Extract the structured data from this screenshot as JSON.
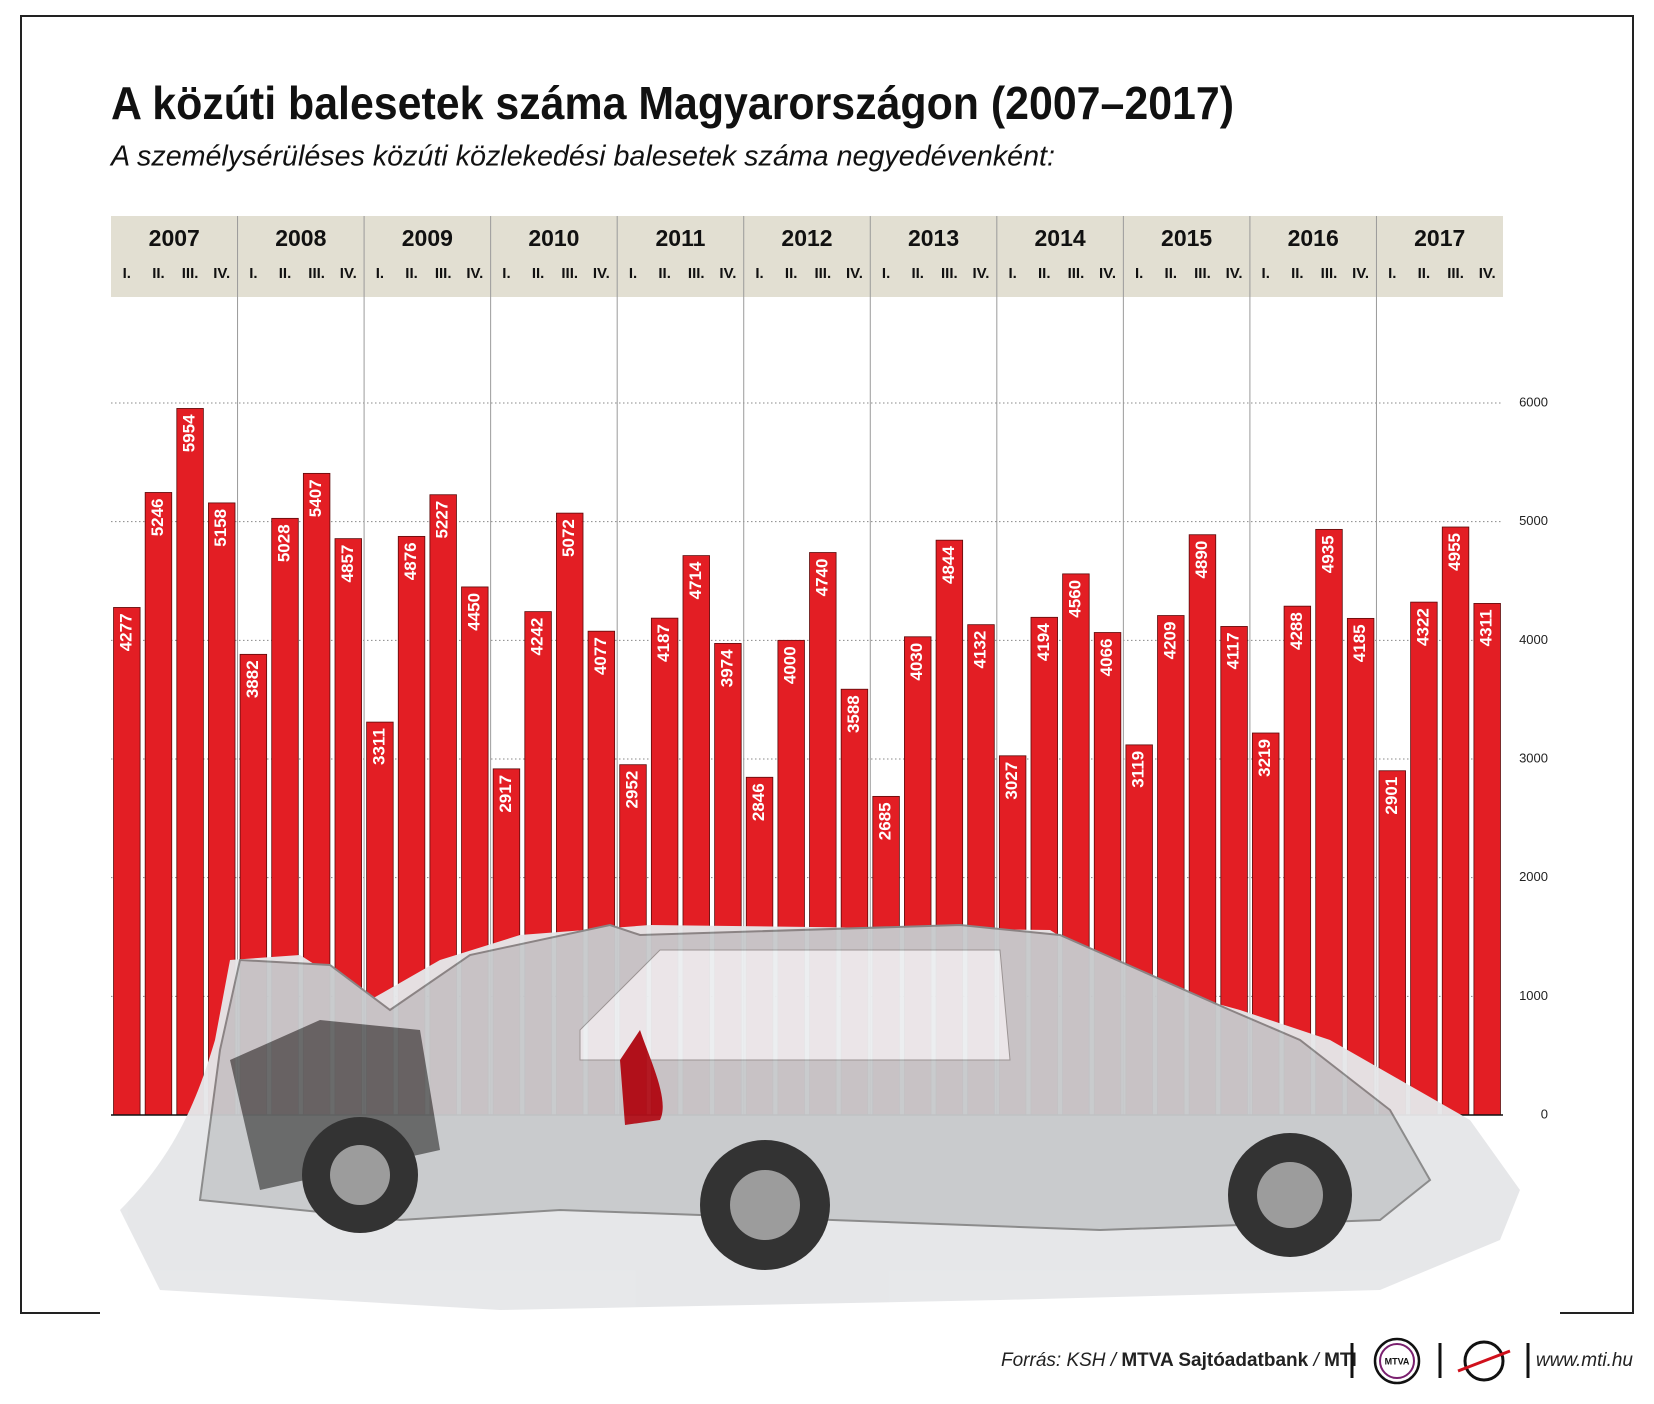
{
  "chart_data": {
    "type": "bar",
    "title": "A közúti balesetek száma Magyarországon (2007–2017)",
    "subtitle": "A személysérüléses közúti közlekedési balesetek száma negyedévenként:",
    "groups": [
      "2007",
      "2008",
      "2009",
      "2010",
      "2011",
      "2012",
      "2013",
      "2014",
      "2015",
      "2016",
      "2017"
    ],
    "categories": [
      "I.",
      "II.",
      "III.",
      "IV.",
      "I.",
      "II.",
      "III.",
      "IV.",
      "I.",
      "II.",
      "III.",
      "IV.",
      "I.",
      "II.",
      "III.",
      "IV.",
      "I.",
      "II.",
      "III.",
      "IV.",
      "I.",
      "II.",
      "III.",
      "IV.",
      "I.",
      "II.",
      "III.",
      "IV.",
      "I.",
      "II.",
      "III.",
      "IV.",
      "I.",
      "II.",
      "III.",
      "IV.",
      "I.",
      "II.",
      "III.",
      "IV.",
      "I.",
      "II.",
      "III.",
      "IV."
    ],
    "values": [
      4277,
      5246,
      5954,
      5158,
      3882,
      5028,
      5407,
      4857,
      3311,
      4876,
      5227,
      4450,
      2917,
      4242,
      5072,
      4077,
      2952,
      4187,
      4714,
      3974,
      2846,
      4000,
      4740,
      3588,
      2685,
      4030,
      4844,
      4132,
      3027,
      4194,
      4560,
      4066,
      3119,
      4209,
      4890,
      4117,
      3219,
      4288,
      4935,
      4185,
      2901,
      4322,
      4955,
      4311
    ],
    "color": "#e31e24",
    "ylim": [
      0,
      6000
    ],
    "yticks": [
      0,
      1000,
      2000,
      3000,
      4000,
      5000,
      6000
    ],
    "grid": true,
    "yaxis_position": "right"
  },
  "footer": {
    "source": [
      "Forrás: KSH /",
      "MTVA Sajtóadatbank",
      "/",
      "MTI"
    ],
    "logo": "MTVA",
    "url": "www.mti.hu"
  }
}
